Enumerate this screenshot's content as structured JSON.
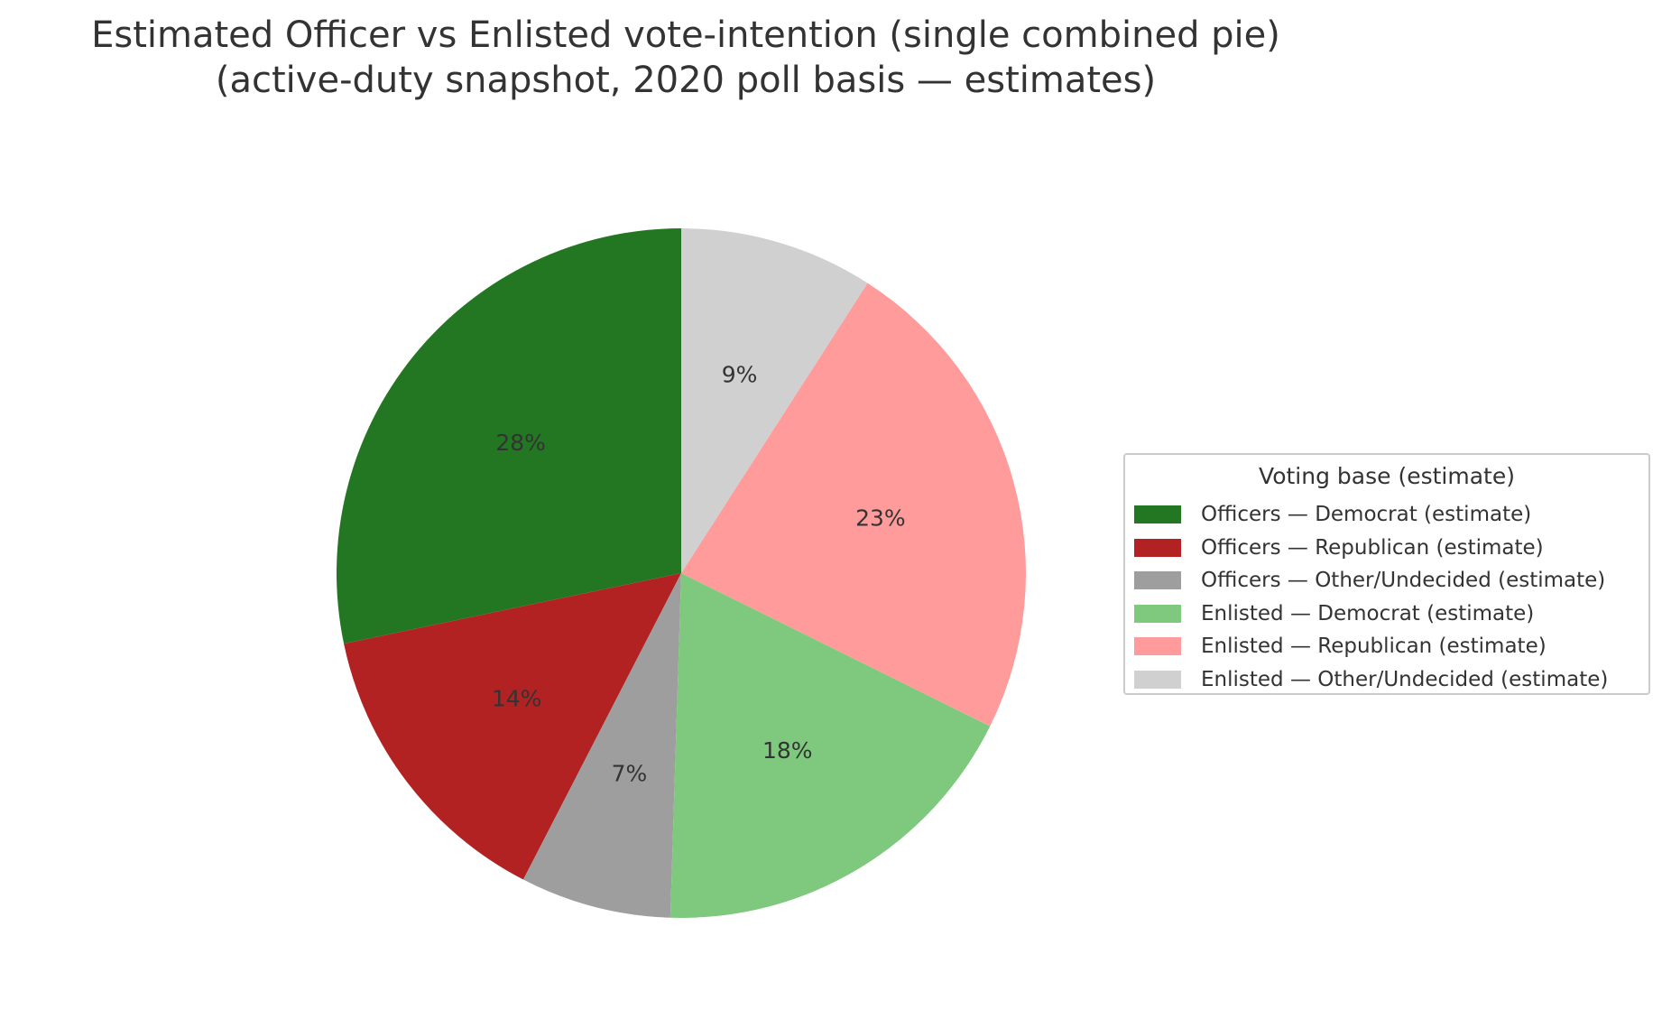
{
  "chart_data": {
    "type": "pie",
    "title": "Estimated Officer vs Enlisted vote-intention (single combined pie)",
    "subtitle": "(active-duty snapshot, 2020 poll basis — estimates)",
    "legend_title": "Voting base (estimate)",
    "legend_position": "right",
    "start": "top, counterclockwise",
    "slices": [
      {
        "label": "Officers — Democrat (estimate)",
        "value": 28,
        "display": "28%",
        "color": "#247722"
      },
      {
        "label": "Officers — Republican (estimate)",
        "value": 14,
        "display": "14%",
        "color": "#b22222"
      },
      {
        "label": "Officers — Other/Undecided (estimate)",
        "value": 7,
        "display": "7%",
        "color": "#9e9e9e"
      },
      {
        "label": "Enlisted — Democrat (estimate)",
        "value": 18,
        "display": "18%",
        "color": "#7ec97e"
      },
      {
        "label": "Enlisted — Republican (estimate)",
        "value": 23,
        "display": "23%",
        "color": "#ff9b9b"
      },
      {
        "label": "Enlisted — Other/Undecided (estimate)",
        "value": 9,
        "display": "9%",
        "color": "#d0d0d0"
      }
    ]
  }
}
